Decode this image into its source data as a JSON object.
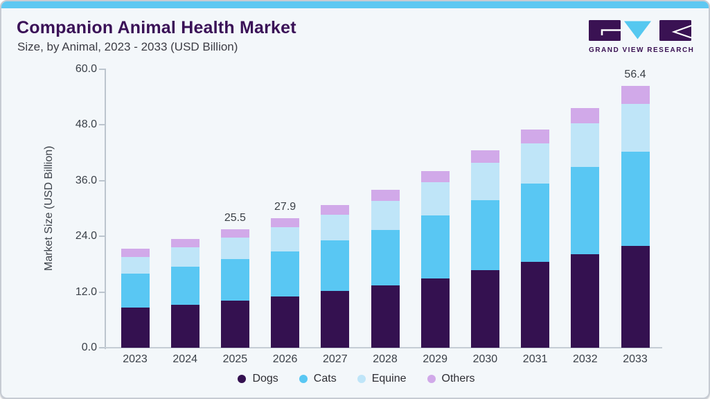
{
  "header": {
    "title": "Companion Animal Health Market",
    "subtitle": "Size, by Animal, 2023 - 2033 (USD Billion)"
  },
  "logo": {
    "text": "GRAND VIEW RESEARCH"
  },
  "colors": {
    "accent_strip": "#5ec8f2",
    "card_background": "#f3f7fa",
    "title_text": "#3a1157",
    "axis_line": "#c5cdd5",
    "logo_purple": "#3a1253",
    "logo_cyan": "#55c8f0"
  },
  "chart_data": {
    "type": "bar",
    "stacked": true,
    "title": "Companion Animal Health Market",
    "subtitle": "Size, by Animal, 2023 - 2033 (USD Billion)",
    "xlabel": "",
    "ylabel": "Market Size (USD Billion)",
    "ylim": [
      0,
      60
    ],
    "yticks": [
      0,
      12,
      24,
      36,
      48,
      60
    ],
    "ytick_labels": [
      "0.0",
      "12.0",
      "24.0",
      "36.0",
      "48.0",
      "60.0"
    ],
    "grid": false,
    "legend_position": "bottom",
    "categories": [
      "2023",
      "2024",
      "2025",
      "2026",
      "2027",
      "2028",
      "2029",
      "2030",
      "2031",
      "2032",
      "2033"
    ],
    "series": [
      {
        "name": "Dogs",
        "color": "#341150",
        "values": [
          8.6,
          9.2,
          10.1,
          11.1,
          12.2,
          13.5,
          15.0,
          16.7,
          18.5,
          20.2,
          22.0
        ]
      },
      {
        "name": "Cats",
        "color": "#59c7f3",
        "values": [
          7.3,
          8.2,
          9.0,
          9.7,
          10.9,
          11.9,
          13.5,
          15.1,
          16.9,
          18.7,
          20.3
        ]
      },
      {
        "name": "Equine",
        "color": "#bfe5f8",
        "values": [
          3.7,
          4.2,
          4.6,
          5.1,
          5.6,
          6.3,
          7.1,
          8.1,
          8.7,
          9.5,
          10.3
        ]
      },
      {
        "name": "Others",
        "color": "#d1a9e9",
        "values": [
          1.7,
          1.8,
          1.8,
          2.0,
          2.0,
          2.4,
          2.4,
          2.7,
          2.9,
          3.2,
          3.8
        ]
      }
    ],
    "totals": [
      21.3,
      23.4,
      25.5,
      27.9,
      30.7,
      34.1,
      38.0,
      42.6,
      47.0,
      51.6,
      56.4
    ],
    "bar_value_labels": {
      "2025": "25.5",
      "2026": "27.9",
      "2033": "56.4"
    }
  }
}
